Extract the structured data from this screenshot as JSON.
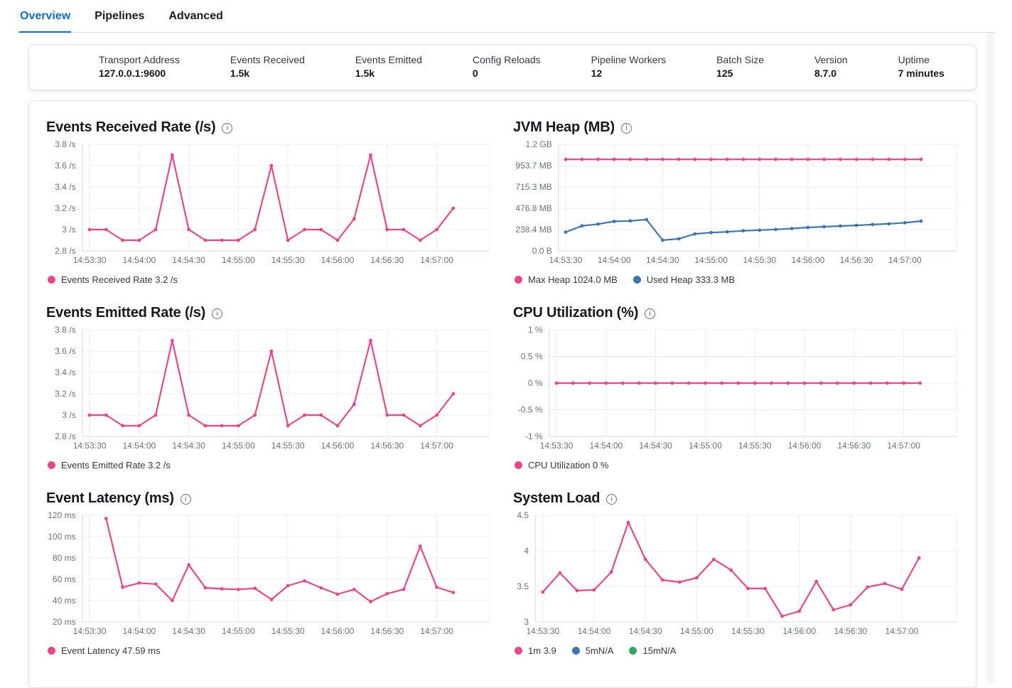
{
  "tabs": {
    "items": [
      {
        "label": "Overview",
        "active": true
      },
      {
        "label": "Pipelines",
        "active": false
      },
      {
        "label": "Advanced",
        "active": false
      }
    ]
  },
  "stats": {
    "items": [
      {
        "label": "Transport Address",
        "value": "127.0.0.1:9600"
      },
      {
        "label": "Events Received",
        "value": "1.5k"
      },
      {
        "label": "Events Emitted",
        "value": "1.5k"
      },
      {
        "label": "Config Reloads",
        "value": "0"
      },
      {
        "label": "Pipeline Workers",
        "value": "12"
      },
      {
        "label": "Batch Size",
        "value": "125"
      },
      {
        "label": "Version",
        "value": "8.7.0"
      },
      {
        "label": "Uptime",
        "value": "7 minutes"
      }
    ]
  },
  "colors": {
    "accent_pink": "#e9478b",
    "series_blue": "#3e76b1",
    "series_green": "#2faa61",
    "tab_active_blue": "#0b6ccb",
    "grid_line": "#e9edf3",
    "axis_line": "#d3dae6",
    "tick_text": "#69707d"
  },
  "icons": {
    "info": "info-icon"
  },
  "chart_data": [
    {
      "type": "line",
      "title": "Events Received Rate (/s)",
      "x": [
        "14:53:30",
        "14:53:40",
        "14:53:50",
        "14:54:00",
        "14:54:10",
        "14:54:20",
        "14:54:30",
        "14:54:40",
        "14:54:50",
        "14:55:00",
        "14:55:10",
        "14:55:20",
        "14:55:30",
        "14:55:40",
        "14:55:50",
        "14:56:00",
        "14:56:10",
        "14:56:20",
        "14:56:30",
        "14:56:40",
        "14:56:50",
        "14:57:00",
        "14:57:10"
      ],
      "x_tick_labels": [
        "14:53:30",
        "14:54:00",
        "14:54:30",
        "14:55:00",
        "14:55:30",
        "14:56:00",
        "14:56:30",
        "14:57:00"
      ],
      "ylim": [
        2.8,
        3.8
      ],
      "y_ticks": [
        {
          "value": 3.8,
          "label": "3.8 /s"
        },
        {
          "value": 3.6,
          "label": "3.6 /s"
        },
        {
          "value": 3.4,
          "label": "3.4 /s"
        },
        {
          "value": 3.2,
          "label": "3.2 /s"
        },
        {
          "value": 3,
          "label": "3 /s"
        },
        {
          "value": 2.8,
          "label": "2.8 /s"
        }
      ],
      "grid": true,
      "legend_position": "bottom",
      "series": [
        {
          "name": "Events Received Rate 3.2 /s",
          "color": "#e9478b",
          "values": [
            3,
            3,
            2.9,
            2.9,
            3,
            3.7,
            3,
            2.9,
            2.9,
            2.9,
            3,
            3.6,
            2.9,
            3,
            3,
            2.9,
            3.1,
            3.7,
            3,
            3,
            2.9,
            3,
            3.2
          ]
        }
      ]
    },
    {
      "type": "line",
      "title": "JVM Heap (MB)",
      "x": [
        "14:53:30",
        "14:53:40",
        "14:53:50",
        "14:54:00",
        "14:54:10",
        "14:54:20",
        "14:54:30",
        "14:54:40",
        "14:54:50",
        "14:55:00",
        "14:55:10",
        "14:55:20",
        "14:55:30",
        "14:55:40",
        "14:55:50",
        "14:56:00",
        "14:56:10",
        "14:56:20",
        "14:56:30",
        "14:56:40",
        "14:56:50",
        "14:57:00",
        "14:57:10"
      ],
      "x_tick_labels": [
        "14:53:30",
        "14:54:00",
        "14:54:30",
        "14:55:00",
        "14:55:30",
        "14:56:00",
        "14:56:30",
        "14:57:00"
      ],
      "ylim": [
        0,
        1192.1
      ],
      "y_ticks": [
        {
          "value": 1192.1,
          "label": "1.2 GB"
        },
        {
          "value": 953.7,
          "label": "953.7 MB"
        },
        {
          "value": 715.3,
          "label": "715.3 MB"
        },
        {
          "value": 476.8,
          "label": "476.8 MB"
        },
        {
          "value": 238.4,
          "label": "238.4 MB"
        },
        {
          "value": 0,
          "label": "0.0 B"
        }
      ],
      "grid": true,
      "legend_position": "bottom",
      "series": [
        {
          "name": "Max Heap 1024.0 MB",
          "color": "#e9478b",
          "values": [
            1024,
            1024,
            1024,
            1024,
            1024,
            1024,
            1024,
            1024,
            1024,
            1024,
            1024,
            1024,
            1024,
            1024,
            1024,
            1024,
            1024,
            1024,
            1024,
            1024,
            1024,
            1024,
            1024
          ]
        },
        {
          "name": "Used Heap 333.3 MB",
          "color": "#3e76b1",
          "values": [
            210,
            280,
            300,
            330,
            335,
            350,
            120,
            135,
            190,
            205,
            213,
            225,
            232,
            240,
            250,
            262,
            270,
            278,
            285,
            295,
            303,
            315,
            333.3
          ]
        }
      ]
    },
    {
      "type": "line",
      "title": "Events Emitted Rate (/s)",
      "x": [
        "14:53:30",
        "14:53:40",
        "14:53:50",
        "14:54:00",
        "14:54:10",
        "14:54:20",
        "14:54:30",
        "14:54:40",
        "14:54:50",
        "14:55:00",
        "14:55:10",
        "14:55:20",
        "14:55:30",
        "14:55:40",
        "14:55:50",
        "14:56:00",
        "14:56:10",
        "14:56:20",
        "14:56:30",
        "14:56:40",
        "14:56:50",
        "14:57:00",
        "14:57:10"
      ],
      "x_tick_labels": [
        "14:53:30",
        "14:54:00",
        "14:54:30",
        "14:55:00",
        "14:55:30",
        "14:56:00",
        "14:56:30",
        "14:57:00"
      ],
      "ylim": [
        2.8,
        3.8
      ],
      "y_ticks": [
        {
          "value": 3.8,
          "label": "3.8 /s"
        },
        {
          "value": 3.6,
          "label": "3.6 /s"
        },
        {
          "value": 3.4,
          "label": "3.4 /s"
        },
        {
          "value": 3.2,
          "label": "3.2 /s"
        },
        {
          "value": 3,
          "label": "3 /s"
        },
        {
          "value": 2.8,
          "label": "2.8 /s"
        }
      ],
      "grid": true,
      "legend_position": "bottom",
      "series": [
        {
          "name": "Events Emitted Rate 3.2 /s",
          "color": "#e9478b",
          "values": [
            3,
            3,
            2.9,
            2.9,
            3,
            3.7,
            3,
            2.9,
            2.9,
            2.9,
            3,
            3.6,
            2.9,
            3,
            3,
            2.9,
            3.1,
            3.7,
            3,
            3,
            2.9,
            3,
            3.2
          ]
        }
      ]
    },
    {
      "type": "line",
      "title": "CPU Utilization (%)",
      "x": [
        "14:53:30",
        "14:53:40",
        "14:53:50",
        "14:54:00",
        "14:54:10",
        "14:54:20",
        "14:54:30",
        "14:54:40",
        "14:54:50",
        "14:55:00",
        "14:55:10",
        "14:55:20",
        "14:55:30",
        "14:55:40",
        "14:55:50",
        "14:56:00",
        "14:56:10",
        "14:56:20",
        "14:56:30",
        "14:56:40",
        "14:56:50",
        "14:57:00",
        "14:57:10"
      ],
      "x_tick_labels": [
        "14:53:30",
        "14:54:00",
        "14:54:30",
        "14:55:00",
        "14:55:30",
        "14:56:00",
        "14:56:30",
        "14:57:00"
      ],
      "ylim": [
        -1,
        1
      ],
      "y_ticks": [
        {
          "value": 1,
          "label": "1 %"
        },
        {
          "value": 0.5,
          "label": "0.5 %"
        },
        {
          "value": 0,
          "label": "0 %"
        },
        {
          "value": -0.5,
          "label": "-0.5 %"
        },
        {
          "value": -1,
          "label": "-1 %"
        }
      ],
      "grid": true,
      "legend_position": "bottom",
      "series": [
        {
          "name": "CPU Utilization 0 %",
          "color": "#e9478b",
          "values": [
            0,
            0,
            0,
            0,
            0,
            0,
            0,
            0,
            0,
            0,
            0,
            0,
            0,
            0,
            0,
            0,
            0,
            0,
            0,
            0,
            0,
            0,
            0
          ]
        }
      ]
    },
    {
      "type": "line",
      "title": "Event Latency (ms)",
      "x": [
        "14:53:30",
        "14:53:40",
        "14:53:50",
        "14:54:00",
        "14:54:10",
        "14:54:20",
        "14:54:30",
        "14:54:40",
        "14:54:50",
        "14:55:00",
        "14:55:10",
        "14:55:20",
        "14:55:30",
        "14:55:40",
        "14:55:50",
        "14:56:00",
        "14:56:10",
        "14:56:20",
        "14:56:30",
        "14:56:40",
        "14:56:50",
        "14:57:00",
        "14:57:10"
      ],
      "x_tick_labels": [
        "14:53:30",
        "14:54:00",
        "14:54:30",
        "14:55:00",
        "14:55:30",
        "14:56:00",
        "14:56:30",
        "14:57:00"
      ],
      "ylim": [
        20,
        120
      ],
      "y_ticks": [
        {
          "value": 120,
          "label": "120 ms"
        },
        {
          "value": 100,
          "label": "100 ms"
        },
        {
          "value": 80,
          "label": "80 ms"
        },
        {
          "value": 60,
          "label": "60 ms"
        },
        {
          "value": 40,
          "label": "40 ms"
        },
        {
          "value": 20,
          "label": "20 ms"
        }
      ],
      "grid": true,
      "legend_position": "bottom",
      "series": [
        {
          "name": "Event Latency 47.59 ms",
          "color": "#e9478b",
          "values": [
            null,
            117,
            52.5,
            56.5,
            55.5,
            40,
            73.5,
            52,
            51,
            50.5,
            51.5,
            41,
            54,
            58.5,
            52,
            46,
            50.5,
            39,
            46.5,
            50.5,
            91,
            52.5,
            47.59
          ]
        }
      ]
    },
    {
      "type": "line",
      "title": "System Load",
      "x": [
        "14:53:30",
        "14:53:40",
        "14:53:50",
        "14:54:00",
        "14:54:10",
        "14:54:20",
        "14:54:30",
        "14:54:40",
        "14:54:50",
        "14:55:00",
        "14:55:10",
        "14:55:20",
        "14:55:30",
        "14:55:40",
        "14:55:50",
        "14:56:00",
        "14:56:10",
        "14:56:20",
        "14:56:30",
        "14:56:40",
        "14:56:50",
        "14:57:00",
        "14:57:10"
      ],
      "x_tick_labels": [
        "14:53:30",
        "14:54:00",
        "14:54:30",
        "14:55:00",
        "14:55:30",
        "14:56:00",
        "14:56:30",
        "14:57:00"
      ],
      "ylim": [
        3,
        4.5
      ],
      "y_ticks": [
        {
          "value": 4.5,
          "label": "4.5"
        },
        {
          "value": 4,
          "label": "4"
        },
        {
          "value": 3.5,
          "label": "3.5"
        },
        {
          "value": 3,
          "label": "3"
        }
      ],
      "grid": true,
      "legend_position": "bottom",
      "series": [
        {
          "name": "1m 3.9",
          "color": "#e9478b",
          "values": [
            3.42,
            3.69,
            3.44,
            3.45,
            3.7,
            4.4,
            3.88,
            3.59,
            3.56,
            3.62,
            3.88,
            3.73,
            3.47,
            3.47,
            3.08,
            3.15,
            3.57,
            3.17,
            3.24,
            3.49,
            3.54,
            3.46,
            3.9
          ]
        },
        {
          "name": "5mN/A",
          "color": "#3e76b1",
          "values": []
        },
        {
          "name": "15mN/A",
          "color": "#2faa61",
          "values": []
        }
      ]
    }
  ]
}
